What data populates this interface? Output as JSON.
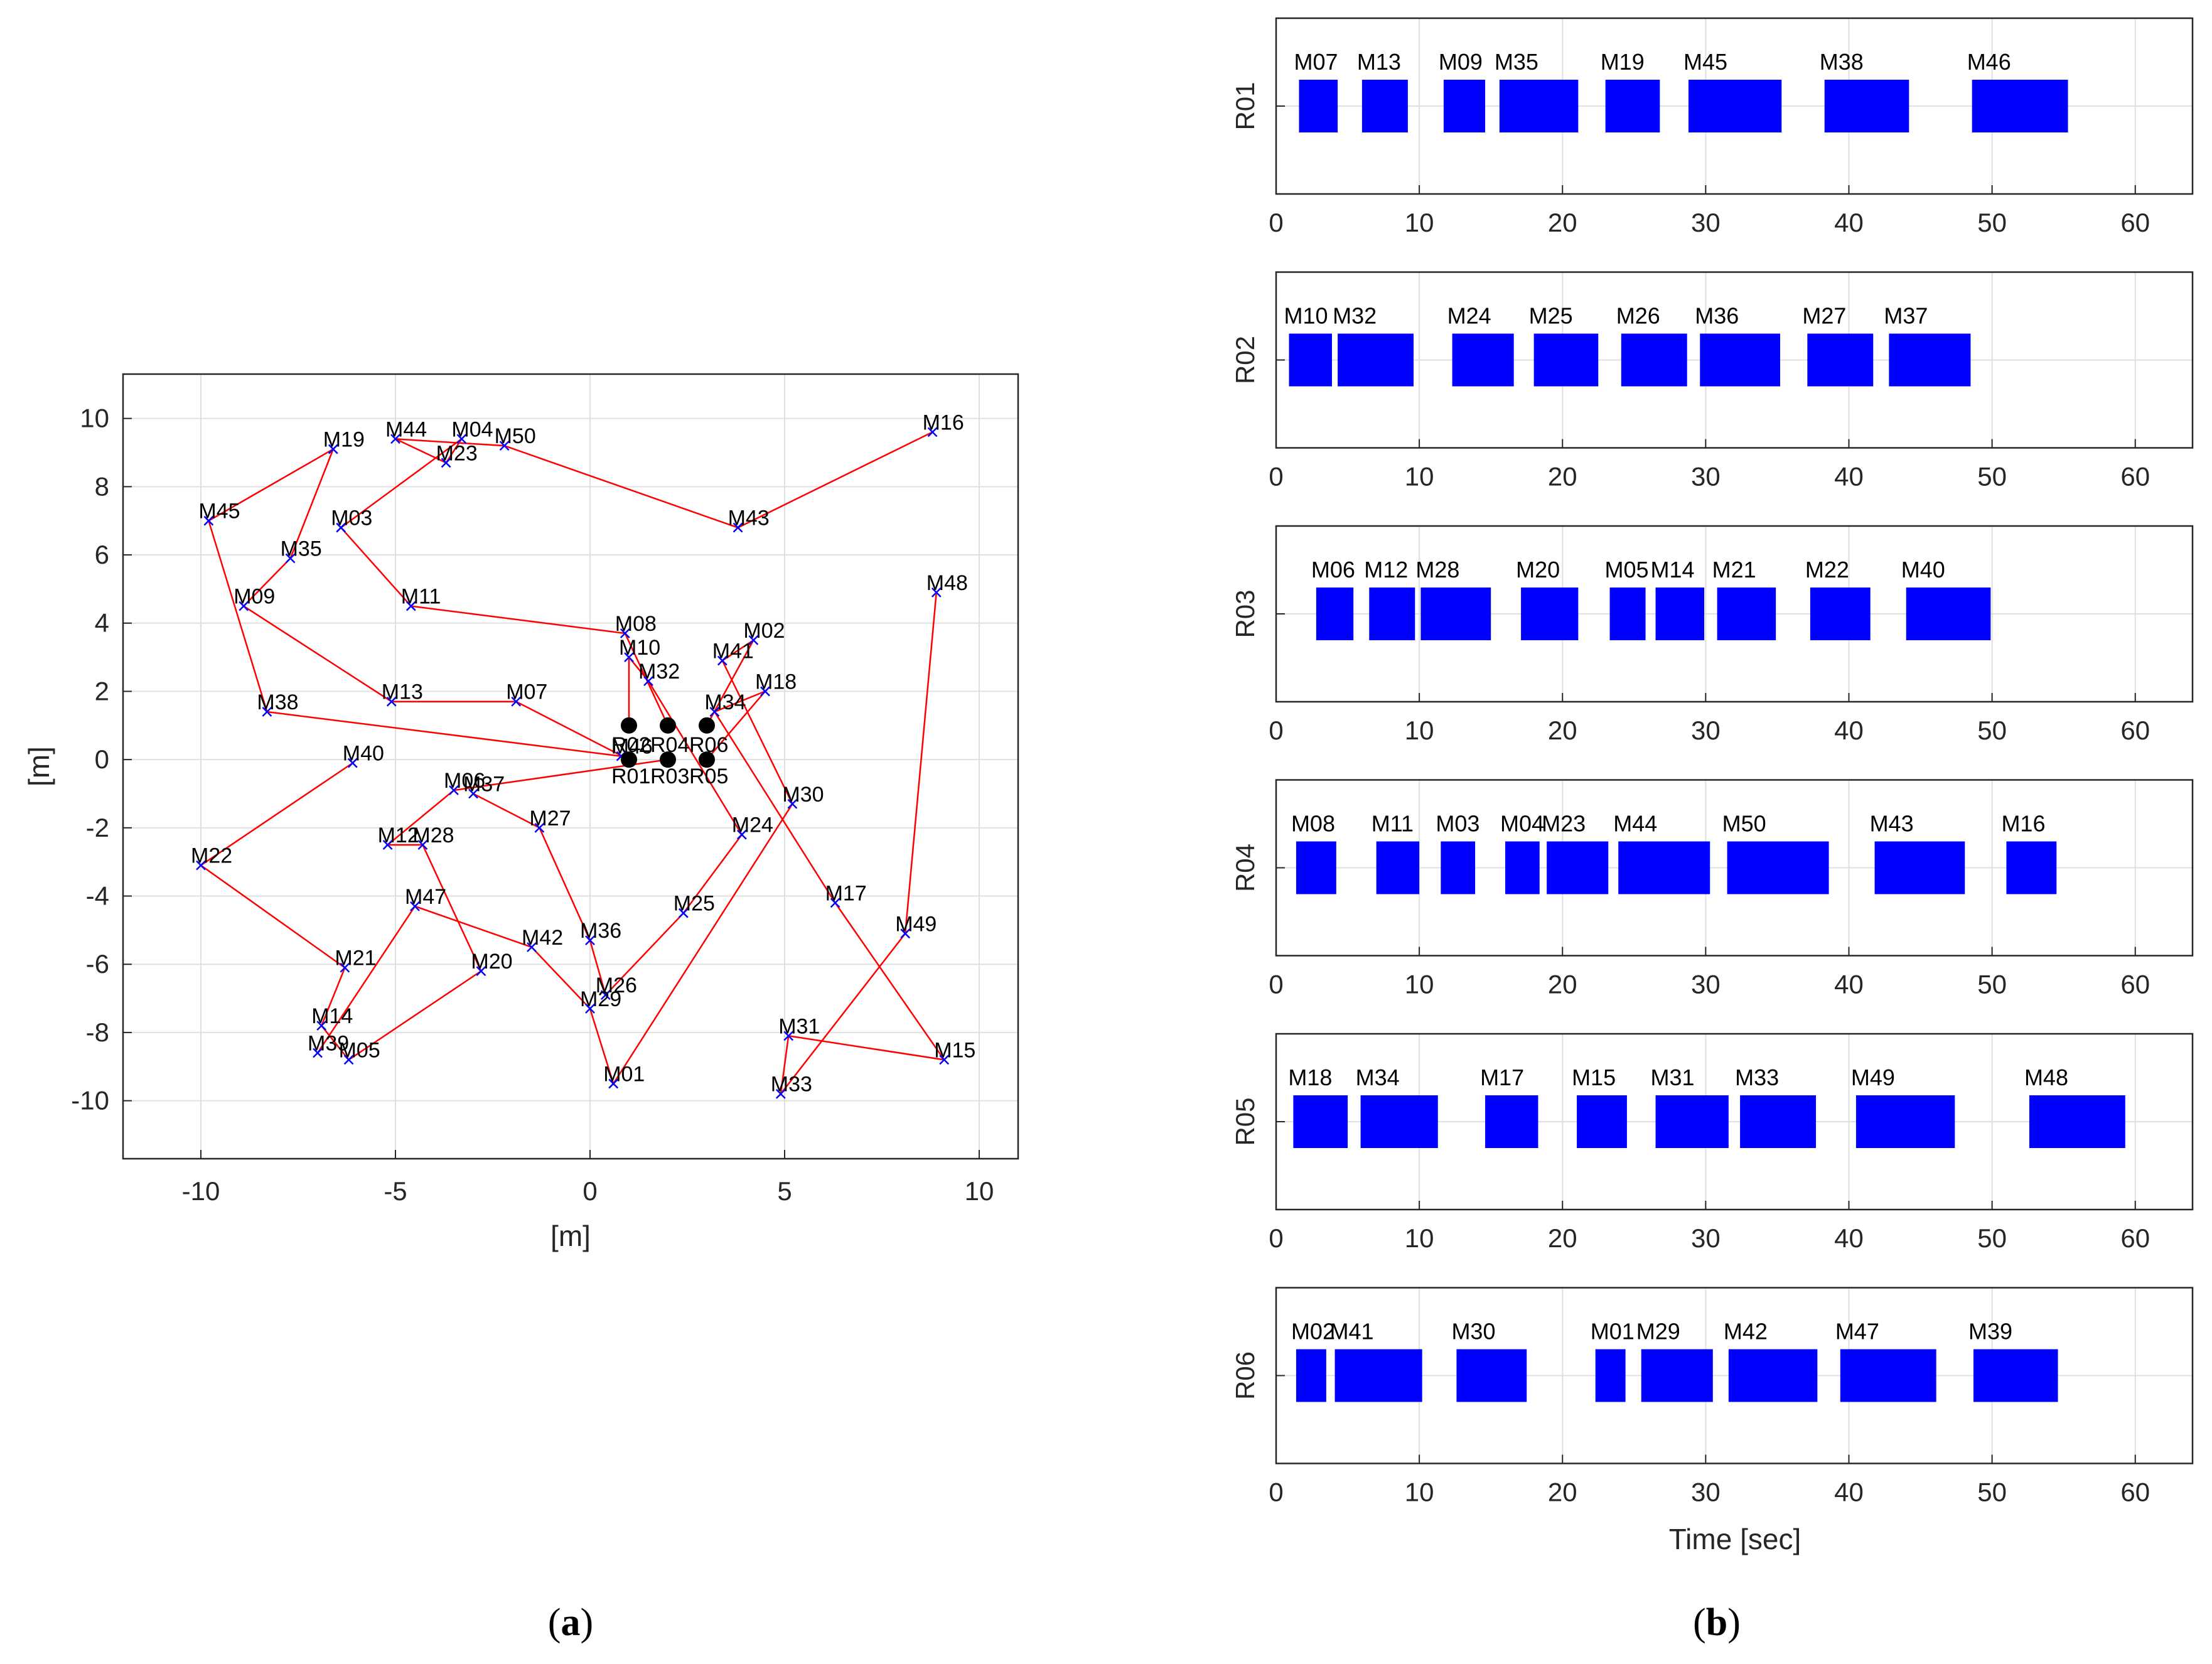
{
  "chart_data": [
    {
      "type": "scatter",
      "panel_id": "a",
      "caption": {
        "open": "(",
        "letter": "a",
        "close": ")"
      },
      "xlabel": "[m]",
      "ylabel": "[m]",
      "xlim": [
        -12,
        11
      ],
      "ylim": [
        -11.7,
        11.3
      ],
      "xticks": [
        -10,
        -5,
        0,
        5,
        10
      ],
      "yticks": [
        10,
        8,
        6,
        4,
        2,
        0,
        -2,
        -4,
        -6,
        -8,
        -10
      ],
      "grid": true,
      "colors": {
        "route": "#ff0000",
        "marker": "#0000ff",
        "robot": "#000000"
      },
      "robots": [
        {
          "name": "R01",
          "x": 1,
          "y": 0
        },
        {
          "name": "R02",
          "x": 1,
          "y": 1
        },
        {
          "name": "R03",
          "x": 2,
          "y": 0
        },
        {
          "name": "R04",
          "x": 2,
          "y": 1
        },
        {
          "name": "R05",
          "x": 3,
          "y": 0
        },
        {
          "name": "R06",
          "x": 3,
          "y": 1
        }
      ],
      "tasks": [
        {
          "name": "M01",
          "x": 0.6,
          "y": -9.5
        },
        {
          "name": "M02",
          "x": 4.2,
          "y": 3.5
        },
        {
          "name": "M03",
          "x": -6.4,
          "y": 6.8
        },
        {
          "name": "M04",
          "x": -3.3,
          "y": 9.4
        },
        {
          "name": "M05",
          "x": -6.2,
          "y": -8.8
        },
        {
          "name": "M06",
          "x": -3.5,
          "y": -0.9
        },
        {
          "name": "M07",
          "x": -1.9,
          "y": 1.7
        },
        {
          "name": "M08",
          "x": 0.9,
          "y": 3.7
        },
        {
          "name": "M09",
          "x": -8.9,
          "y": 4.5
        },
        {
          "name": "M10",
          "x": 1.0,
          "y": 3.0
        },
        {
          "name": "M11",
          "x": -4.6,
          "y": 4.5
        },
        {
          "name": "M12",
          "x": -5.2,
          "y": -2.5
        },
        {
          "name": "M13",
          "x": -5.1,
          "y": 1.7
        },
        {
          "name": "M14",
          "x": -6.9,
          "y": -7.8
        },
        {
          "name": "M15",
          "x": 9.1,
          "y": -8.8
        },
        {
          "name": "M16",
          "x": 8.8,
          "y": 9.6
        },
        {
          "name": "M17",
          "x": 6.3,
          "y": -4.2
        },
        {
          "name": "M18",
          "x": 4.5,
          "y": 2.0
        },
        {
          "name": "M19",
          "x": -6.6,
          "y": 9.1
        },
        {
          "name": "M20",
          "x": -2.8,
          "y": -6.2
        },
        {
          "name": "M21",
          "x": -6.3,
          "y": -6.1
        },
        {
          "name": "M22",
          "x": -10.0,
          "y": -3.1
        },
        {
          "name": "M23",
          "x": -3.7,
          "y": 8.7
        },
        {
          "name": "M24",
          "x": 3.9,
          "y": -2.2
        },
        {
          "name": "M25",
          "x": 2.4,
          "y": -4.5
        },
        {
          "name": "M26",
          "x": 0.4,
          "y": -6.9
        },
        {
          "name": "M27",
          "x": -1.3,
          "y": -2.0
        },
        {
          "name": "M28",
          "x": -4.3,
          "y": -2.5
        },
        {
          "name": "M29",
          "x": 0.0,
          "y": -7.3
        },
        {
          "name": "M30",
          "x": 5.2,
          "y": -1.3
        },
        {
          "name": "M31",
          "x": 5.1,
          "y": -8.1
        },
        {
          "name": "M32",
          "x": 1.5,
          "y": 2.3
        },
        {
          "name": "M33",
          "x": 4.9,
          "y": -9.8
        },
        {
          "name": "M34",
          "x": 3.2,
          "y": 1.4
        },
        {
          "name": "M35",
          "x": -7.7,
          "y": 5.9
        },
        {
          "name": "M36",
          "x": 0.0,
          "y": -5.3
        },
        {
          "name": "M37",
          "x": -3.0,
          "y": -1.0
        },
        {
          "name": "M38",
          "x": -8.3,
          "y": 1.4
        },
        {
          "name": "M39",
          "x": -7.0,
          "y": -8.6
        },
        {
          "name": "M40",
          "x": -6.1,
          "y": -0.1
        },
        {
          "name": "M41",
          "x": 3.4,
          "y": 2.9
        },
        {
          "name": "M42",
          "x": -1.5,
          "y": -5.5
        },
        {
          "name": "M43",
          "x": 3.8,
          "y": 6.8
        },
        {
          "name": "M44",
          "x": -5.0,
          "y": 9.4
        },
        {
          "name": "M45",
          "x": -9.8,
          "y": 7.0
        },
        {
          "name": "M46",
          "x": 0.8,
          "y": 0.1
        },
        {
          "name": "M47",
          "x": -4.5,
          "y": -4.3
        },
        {
          "name": "M48",
          "x": 8.9,
          "y": 4.9
        },
        {
          "name": "M49",
          "x": 8.1,
          "y": -5.1
        },
        {
          "name": "M50",
          "x": -2.2,
          "y": 9.2
        }
      ],
      "routes": [
        {
          "robot": "R01",
          "path": [
            "R01",
            "M07",
            "M13",
            "M09",
            "M35",
            "M19",
            "M45",
            "M38",
            "M46"
          ]
        },
        {
          "robot": "R02",
          "path": [
            "R02",
            "M10",
            "M32",
            "M24",
            "M25",
            "M26",
            "M36",
            "M27",
            "M37"
          ]
        },
        {
          "robot": "R03",
          "path": [
            "R03",
            "M06",
            "M12",
            "M28",
            "M20",
            "M05",
            "M14",
            "M21",
            "M22",
            "M40"
          ]
        },
        {
          "robot": "R04",
          "path": [
            "R04",
            "M08",
            "M11",
            "M03",
            "M04",
            "M23",
            "M44",
            "M50",
            "M43",
            "M16"
          ]
        },
        {
          "robot": "R05",
          "path": [
            "R05",
            "M18",
            "M34",
            "M17",
            "M15",
            "M31",
            "M33",
            "M49",
            "M48"
          ]
        },
        {
          "robot": "R06",
          "path": [
            "R06",
            "M02",
            "M41",
            "M30",
            "M01",
            "M29",
            "M42",
            "M47",
            "M39"
          ]
        }
      ]
    },
    {
      "type": "gantt",
      "panel_id": "b",
      "caption": {
        "open": "(",
        "letter": "b",
        "close": ")"
      },
      "xlabel": "Time [sec]",
      "xlim": [
        0,
        64
      ],
      "xticks": [
        0,
        10,
        20,
        30,
        40,
        50,
        60
      ],
      "grid": true,
      "bar_color": "#0000ff",
      "rows": [
        {
          "robot": "R01",
          "tasks": [
            {
              "name": "M07",
              "start": 1.6,
              "end": 4.3
            },
            {
              "name": "M13",
              "start": 6.0,
              "end": 9.2
            },
            {
              "name": "M09",
              "start": 11.7,
              "end": 14.6
            },
            {
              "name": "M35",
              "start": 15.6,
              "end": 21.1
            },
            {
              "name": "M19",
              "start": 23.0,
              "end": 26.8
            },
            {
              "name": "M45",
              "start": 28.8,
              "end": 35.3
            },
            {
              "name": "M38",
              "start": 38.3,
              "end": 44.2
            },
            {
              "name": "M46",
              "start": 48.6,
              "end": 55.3
            }
          ]
        },
        {
          "robot": "R02",
          "tasks": [
            {
              "name": "M10",
              "start": 0.9,
              "end": 3.9
            },
            {
              "name": "M32",
              "start": 4.3,
              "end": 9.6
            },
            {
              "name": "M24",
              "start": 12.3,
              "end": 16.6
            },
            {
              "name": "M25",
              "start": 18.0,
              "end": 22.5
            },
            {
              "name": "M26",
              "start": 24.1,
              "end": 28.7
            },
            {
              "name": "M36",
              "start": 29.6,
              "end": 35.2
            },
            {
              "name": "M27",
              "start": 37.1,
              "end": 41.7
            },
            {
              "name": "M37",
              "start": 42.8,
              "end": 48.5
            }
          ]
        },
        {
          "robot": "R03",
          "tasks": [
            {
              "name": "M06",
              "start": 2.8,
              "end": 5.4
            },
            {
              "name": "M12",
              "start": 6.5,
              "end": 9.7
            },
            {
              "name": "M28",
              "start": 10.1,
              "end": 15.0
            },
            {
              "name": "M20",
              "start": 17.1,
              "end": 21.1
            },
            {
              "name": "M05",
              "start": 23.3,
              "end": 25.8
            },
            {
              "name": "M14",
              "start": 26.5,
              "end": 29.9
            },
            {
              "name": "M21",
              "start": 30.8,
              "end": 34.9
            },
            {
              "name": "M22",
              "start": 37.3,
              "end": 41.5
            },
            {
              "name": "M40",
              "start": 44.0,
              "end": 49.9
            }
          ]
        },
        {
          "robot": "R04",
          "tasks": [
            {
              "name": "M08",
              "start": 1.4,
              "end": 4.2
            },
            {
              "name": "M11",
              "start": 7.0,
              "end": 10.0
            },
            {
              "name": "M03",
              "start": 11.5,
              "end": 13.9
            },
            {
              "name": "M04",
              "start": 16.0,
              "end": 18.4
            },
            {
              "name": "M23",
              "start": 18.9,
              "end": 23.2
            },
            {
              "name": "M44",
              "start": 23.9,
              "end": 30.3
            },
            {
              "name": "M50",
              "start": 31.5,
              "end": 38.6
            },
            {
              "name": "M43",
              "start": 41.8,
              "end": 48.1
            },
            {
              "name": "M16",
              "start": 51.0,
              "end": 54.5
            }
          ]
        },
        {
          "robot": "R05",
          "tasks": [
            {
              "name": "M18",
              "start": 1.2,
              "end": 5.0
            },
            {
              "name": "M34",
              "start": 5.9,
              "end": 11.3
            },
            {
              "name": "M17",
              "start": 14.6,
              "end": 18.3
            },
            {
              "name": "M15",
              "start": 21.0,
              "end": 24.5
            },
            {
              "name": "M31",
              "start": 26.5,
              "end": 31.6
            },
            {
              "name": "M33",
              "start": 32.4,
              "end": 37.7
            },
            {
              "name": "M49",
              "start": 40.5,
              "end": 47.4
            },
            {
              "name": "M48",
              "start": 52.6,
              "end": 59.3
            }
          ]
        },
        {
          "robot": "R06",
          "tasks": [
            {
              "name": "M02",
              "start": 1.4,
              "end": 3.5
            },
            {
              "name": "M41",
              "start": 4.1,
              "end": 10.2
            },
            {
              "name": "M30",
              "start": 12.6,
              "end": 17.5
            },
            {
              "name": "M01",
              "start": 22.3,
              "end": 24.4
            },
            {
              "name": "M29",
              "start": 25.5,
              "end": 30.5
            },
            {
              "name": "M42",
              "start": 31.6,
              "end": 37.8
            },
            {
              "name": "M47",
              "start": 39.4,
              "end": 46.1
            },
            {
              "name": "M39",
              "start": 48.7,
              "end": 54.6
            }
          ]
        }
      ]
    }
  ]
}
